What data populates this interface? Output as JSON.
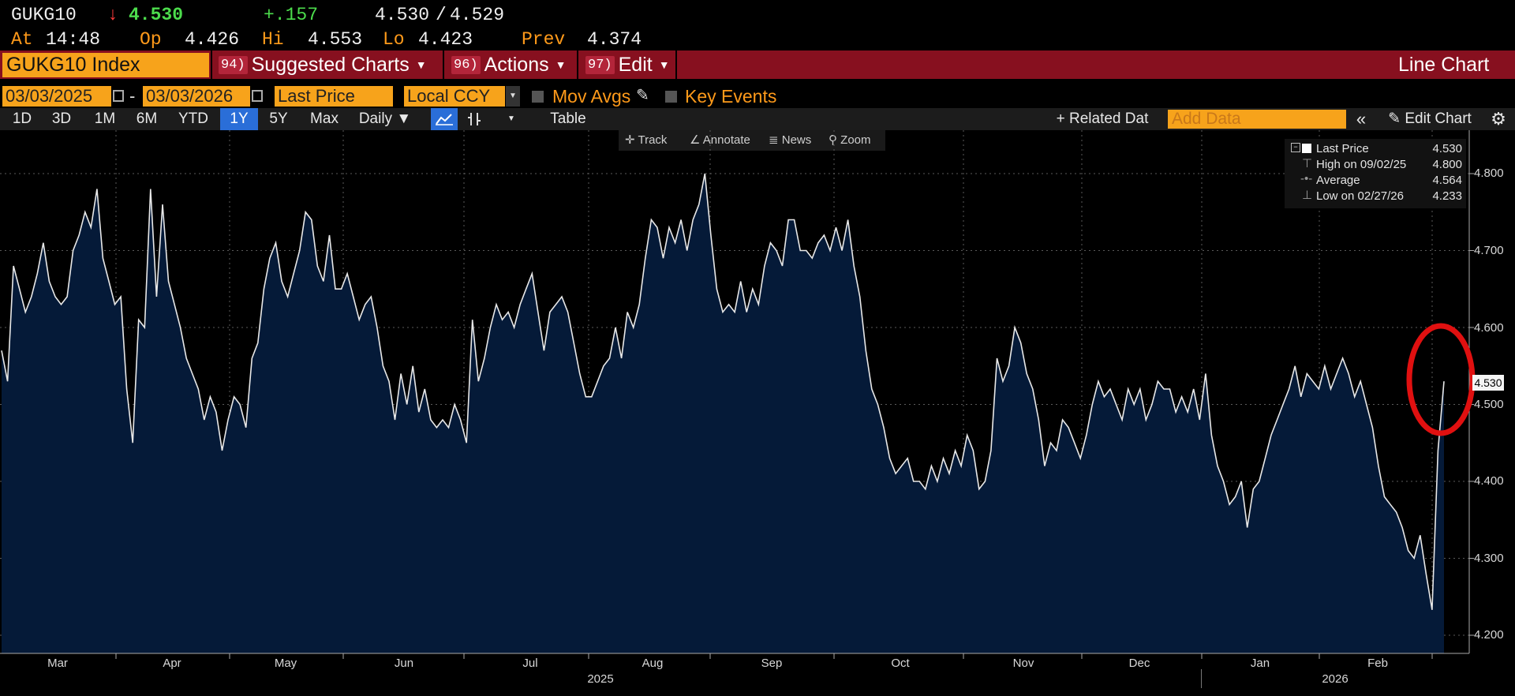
{
  "quote": {
    "ticker": "GUKG10",
    "arrow": "↓",
    "last": "4.530",
    "change": "+.157",
    "bid": "4.530",
    "slash": "/",
    "ask": "4.529",
    "at_label": "At",
    "time": "14:48",
    "op_label": "Op",
    "open": "4.426",
    "hi_label": "Hi",
    "high": "4.553",
    "lo_label": "Lo",
    "low": "4.423",
    "prev_label": "Prev",
    "prev": "4.374"
  },
  "menubar": {
    "security": "GUKG10 Index",
    "suggested_num": "94)",
    "suggested": "Suggested Charts",
    "actions_num": "96)",
    "actions": "Actions",
    "edit_num": "97)",
    "edit": "Edit",
    "chart_type": "Line Chart"
  },
  "params": {
    "start_date": "03/03/2025",
    "dash": "-",
    "end_date": "03/03/2026",
    "field": "Last Price",
    "currency": "Local CCY",
    "mov_avgs": "Mov Avgs",
    "key_events": "Key Events"
  },
  "toolbar": {
    "periods": [
      "1D",
      "3D",
      "1M",
      "6M",
      "YTD",
      "1Y",
      "5Y",
      "Max"
    ],
    "selected": "1Y",
    "frequency": "Daily ▼",
    "table": "Table",
    "related": "+ Related Dat",
    "add_data": "Add Data",
    "edit_chart": "Edit Chart"
  },
  "tools": {
    "track": "Track",
    "annotate": "Annotate",
    "news": "News",
    "zoom": "Zoom"
  },
  "legend": {
    "last_label": "Last Price",
    "last_value": "4.530",
    "high_label": "High on 09/02/25",
    "high_value": "4.800",
    "avg_label": "Average",
    "avg_value": "4.564",
    "low_label": "Low on 02/27/26",
    "low_value": "4.233"
  },
  "colors": {
    "orange": "#f7a31b",
    "menubar": "#87101f",
    "area": "#051a38",
    "line": "#e8e8e8",
    "highlight_circle": "#e01010"
  },
  "chart_data": {
    "type": "area",
    "title": "GUKG10 Index",
    "series_name": "Last Price",
    "ylim": [
      4.18,
      4.83
    ],
    "yticks": [
      "4.800",
      "4.700",
      "4.600",
      "4.500",
      "4.400",
      "4.300",
      "4.200"
    ],
    "months": [
      "Mar",
      "Apr",
      "May",
      "Jun",
      "Jul",
      "Aug",
      "Sep",
      "Oct",
      "Nov",
      "Dec",
      "Jan",
      "Feb"
    ],
    "years": [
      "2025",
      "2026"
    ],
    "last_label": "4.530",
    "values": [
      4.57,
      4.53,
      4.68,
      4.65,
      4.62,
      4.64,
      4.67,
      4.71,
      4.66,
      4.64,
      4.63,
      4.64,
      4.7,
      4.72,
      4.75,
      4.73,
      4.78,
      4.69,
      4.66,
      4.63,
      4.64,
      4.52,
      4.45,
      4.61,
      4.6,
      4.78,
      4.64,
      4.76,
      4.66,
      4.63,
      4.6,
      4.56,
      4.54,
      4.52,
      4.48,
      4.51,
      4.49,
      4.44,
      4.48,
      4.51,
      4.5,
      4.47,
      4.56,
      4.58,
      4.65,
      4.69,
      4.71,
      4.66,
      4.64,
      4.67,
      4.7,
      4.75,
      4.74,
      4.68,
      4.66,
      4.72,
      4.65,
      4.65,
      4.67,
      4.64,
      4.61,
      4.63,
      4.64,
      4.6,
      4.55,
      4.53,
      4.48,
      4.54,
      4.5,
      4.55,
      4.49,
      4.52,
      4.48,
      4.47,
      4.48,
      4.47,
      4.5,
      4.48,
      4.45,
      4.61,
      4.53,
      4.56,
      4.6,
      4.63,
      4.61,
      4.62,
      4.6,
      4.63,
      4.65,
      4.67,
      4.62,
      4.57,
      4.62,
      4.63,
      4.64,
      4.62,
      4.58,
      4.54,
      4.51,
      4.51,
      4.53,
      4.55,
      4.56,
      4.6,
      4.56,
      4.62,
      4.6,
      4.63,
      4.69,
      4.74,
      4.73,
      4.69,
      4.73,
      4.71,
      4.74,
      4.7,
      4.74,
      4.76,
      4.8,
      4.72,
      4.65,
      4.62,
      4.63,
      4.62,
      4.66,
      4.62,
      4.65,
      4.63,
      4.68,
      4.71,
      4.7,
      4.68,
      4.74,
      4.74,
      4.7,
      4.7,
      4.69,
      4.71,
      4.72,
      4.7,
      4.73,
      4.7,
      4.74,
      4.68,
      4.64,
      4.57,
      4.52,
      4.5,
      4.47,
      4.43,
      4.41,
      4.42,
      4.43,
      4.4,
      4.4,
      4.39,
      4.42,
      4.4,
      4.43,
      4.41,
      4.44,
      4.42,
      4.46,
      4.44,
      4.39,
      4.4,
      4.44,
      4.56,
      4.53,
      4.55,
      4.6,
      4.58,
      4.54,
      4.52,
      4.48,
      4.42,
      4.45,
      4.44,
      4.48,
      4.47,
      4.45,
      4.43,
      4.46,
      4.5,
      4.53,
      4.51,
      4.52,
      4.5,
      4.48,
      4.52,
      4.5,
      4.52,
      4.48,
      4.5,
      4.53,
      4.52,
      4.52,
      4.49,
      4.51,
      4.49,
      4.52,
      4.48,
      4.54,
      4.46,
      4.42,
      4.4,
      4.37,
      4.38,
      4.4,
      4.34,
      4.39,
      4.4,
      4.43,
      4.46,
      4.48,
      4.5,
      4.52,
      4.55,
      4.51,
      4.54,
      4.53,
      4.52,
      4.55,
      4.52,
      4.54,
      4.56,
      4.54,
      4.51,
      4.53,
      4.5,
      4.47,
      4.42,
      4.38,
      4.37,
      4.36,
      4.34,
      4.31,
      4.3,
      4.33,
      4.28,
      4.233,
      4.44,
      4.53
    ]
  }
}
